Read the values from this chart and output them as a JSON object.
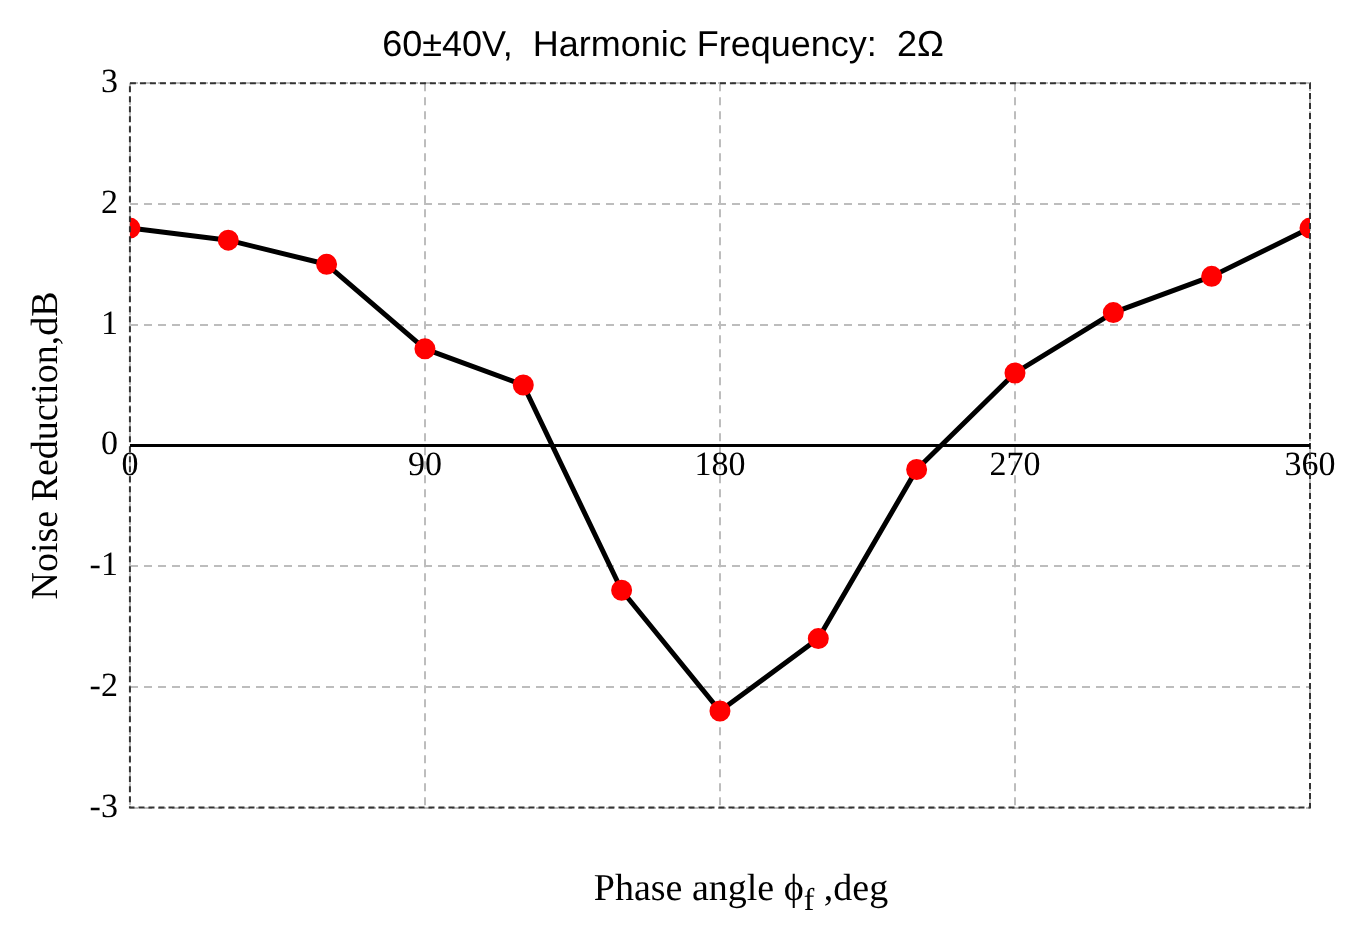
{
  "chart_data": {
    "type": "line",
    "title": "60±40V,  Harmonic Frequency:  2Ω",
    "xlabel": "Phase angle  ϕ$_{f}$ ,deg",
    "ylabel": "Noise Reduction,dB",
    "x": [
      0,
      30,
      60,
      90,
      120,
      150,
      180,
      210,
      240,
      270,
      300,
      330,
      360
    ],
    "series": [
      {
        "color": "#000000",
        "colors": [
          "#ff0000",
          "#ff0000",
          "#ff0000",
          "#ff0000",
          "#ff0000",
          "#ff0000",
          "#ff0000",
          "#ff0000",
          "#ff0000",
          "#ff0000",
          "#ff0000",
          "#ff0000",
          "#ff0000"
        ],
        "values": [
          1.8,
          1.7,
          1.5,
          0.8,
          0.5,
          -1.2,
          -2.2,
          -1.6,
          -0.2,
          0.6,
          1.1,
          1.4,
          1.8
        ]
      }
    ],
    "xlim": [
      0,
      360
    ],
    "xticks": [
      0,
      90,
      180,
      270,
      360
    ],
    "ylim": [
      -3,
      3
    ],
    "yticks": [
      -3,
      -2,
      -1,
      0,
      1,
      2,
      3
    ],
    "grid": true,
    "legend": false,
    "marker": "circle",
    "line_style": "solid"
  }
}
